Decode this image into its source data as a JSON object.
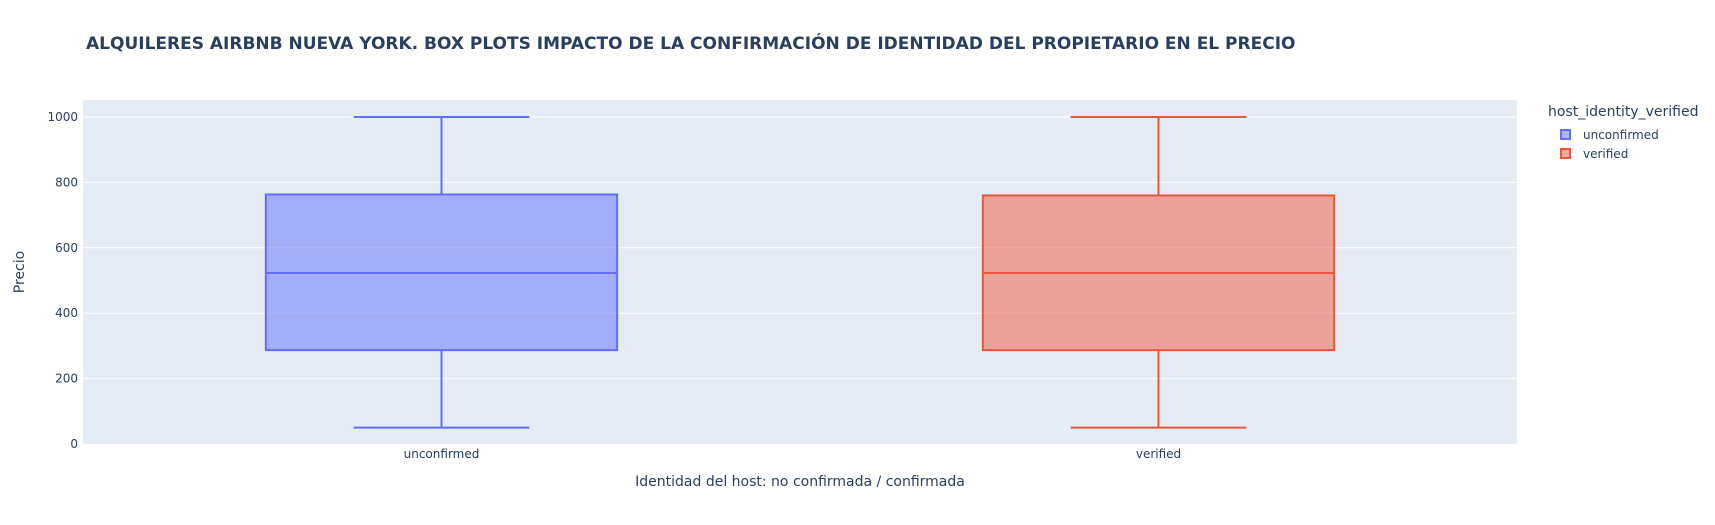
{
  "chart_data": {
    "type": "box",
    "title": "ALQUILERES AIRBNB NUEVA YORK. BOX PLOTS IMPACTO DE LA CONFIRMACIÓN DE IDENTIDAD DEL PROPIETARIO EN EL PRECIO",
    "xlabel": "Identidad del host: no confirmada / confirmada",
    "ylabel": "Precio",
    "ylim": [
      0,
      1050
    ],
    "yticks": [
      0,
      200,
      400,
      600,
      800,
      1000
    ],
    "categories": [
      "unconfirmed",
      "verified"
    ],
    "legend": {
      "title": "host_identity_verified",
      "position": "top-right"
    },
    "series": [
      {
        "name": "unconfirmed",
        "category": "unconfirmed",
        "color": "#636efa",
        "fill": "rgba(99,110,250,0.5)",
        "min": 50,
        "q1": 287,
        "median": 523,
        "q3": 763,
        "max": 1000
      },
      {
        "name": "verified",
        "category": "verified",
        "color": "#ef553b",
        "fill": "rgba(239,85,59,0.5)",
        "min": 50,
        "q1": 287,
        "median": 523,
        "q3": 760,
        "max": 1000
      }
    ],
    "grid": true,
    "background": "#e5ecf6"
  }
}
